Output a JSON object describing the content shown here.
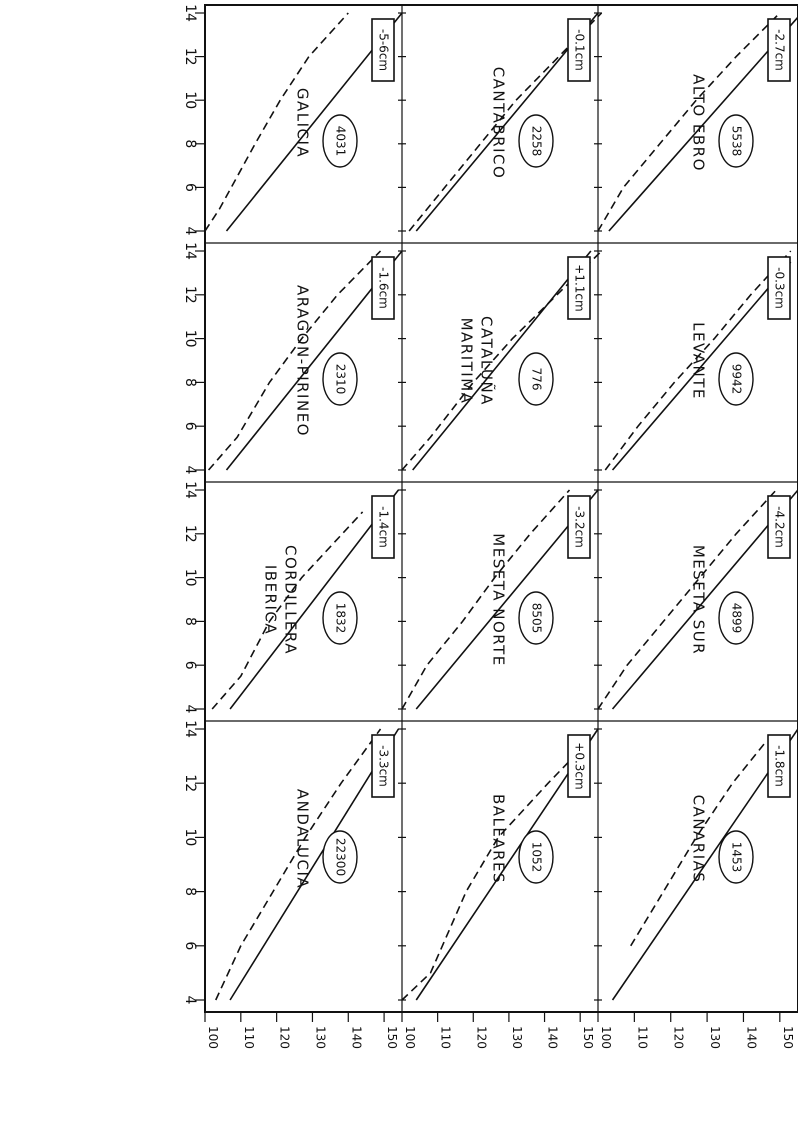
{
  "chart_data": {
    "type": "line",
    "layout": "small-multiples 3 columns x 4 rows, rotated page",
    "x_ticks": [
      "4",
      "6",
      "8",
      "10",
      "12",
      "14"
    ],
    "y_ticks": [
      "100",
      "110",
      "120",
      "130",
      "140",
      "150"
    ],
    "xlim": [
      4,
      14
    ],
    "ylim": [
      100,
      155
    ],
    "panels": [
      {
        "name": "GALICIA",
        "name2": "",
        "diff": "-5-6cm",
        "n": "4031",
        "solid": [
          [
            4,
            106
          ],
          [
            14,
            155
          ]
        ],
        "dashed": [
          [
            4,
            100
          ],
          [
            5,
            104
          ],
          [
            8,
            114
          ],
          [
            10,
            121
          ],
          [
            12,
            129
          ],
          [
            14,
            140
          ]
        ]
      },
      {
        "name": "ARAGON-PIRINEO",
        "name2": "",
        "diff": "-1.6cm",
        "n": "2310",
        "solid": [
          [
            4,
            106
          ],
          [
            14,
            155
          ]
        ],
        "dashed": [
          [
            4,
            101
          ],
          [
            5.5,
            109
          ],
          [
            8,
            118
          ],
          [
            10,
            127
          ],
          [
            12,
            137
          ],
          [
            14,
            149
          ]
        ]
      },
      {
        "name": "CORDILLERA",
        "name2": "IBERICA",
        "diff": "-1.4cm",
        "n": "1832",
        "solid": [
          [
            4,
            107
          ],
          [
            14,
            154
          ]
        ],
        "dashed": [
          [
            4,
            102
          ],
          [
            5.5,
            110
          ],
          [
            8,
            118
          ],
          [
            10,
            127
          ],
          [
            13,
            144
          ]
        ]
      },
      {
        "name": "ANDALUCIA",
        "name2": "",
        "diff": "-3.3cm",
        "n": "22300",
        "solid": [
          [
            4,
            107
          ],
          [
            14,
            154
          ]
        ],
        "dashed": [
          [
            4,
            103
          ],
          [
            6,
            110
          ],
          [
            8,
            119
          ],
          [
            10,
            128
          ],
          [
            12,
            138
          ],
          [
            14,
            149
          ]
        ]
      },
      {
        "name": "CANTABRICO",
        "name2": "",
        "diff": "-0.1cm",
        "n": "2258",
        "solid": [
          [
            4,
            104
          ],
          [
            14,
            155
          ]
        ],
        "dashed": [
          [
            4,
            102
          ],
          [
            6,
            112
          ],
          [
            10,
            132
          ],
          [
            14,
            156
          ]
        ]
      },
      {
        "name": "CATALUÑA",
        "name2": "MARITIMA",
        "diff": "+1.1cm",
        "n": "776",
        "solid": [
          [
            4,
            103
          ],
          [
            14,
            153
          ]
        ],
        "dashed": [
          [
            4,
            100
          ],
          [
            5.5,
            108
          ],
          [
            8,
            120
          ],
          [
            10,
            131
          ],
          [
            14,
            156
          ]
        ]
      },
      {
        "name": "MESETA NORTE",
        "name2": "",
        "diff": "-3.2cm",
        "n": "8505",
        "solid": [
          [
            4,
            104
          ],
          [
            14,
            155
          ]
        ],
        "dashed": [
          [
            4,
            100
          ],
          [
            6,
            107
          ],
          [
            8,
            117
          ],
          [
            10,
            126
          ],
          [
            12,
            136
          ],
          [
            14,
            147
          ]
        ]
      },
      {
        "name": "BALEARES",
        "name2": "",
        "diff": "+0.3cm",
        "n": "1052",
        "solid": [
          [
            4,
            104
          ],
          [
            14,
            155
          ]
        ],
        "dashed": [
          [
            4,
            100
          ],
          [
            5,
            108
          ],
          [
            8,
            118
          ],
          [
            10,
            127
          ],
          [
            12,
            141
          ],
          [
            13.5,
            152
          ]
        ]
      },
      {
        "name": "ALTO EBRO",
        "name2": "",
        "diff": "-2.7cm",
        "n": "5538",
        "solid": [
          [
            4,
            103
          ],
          [
            14,
            156
          ]
        ],
        "dashed": [
          [
            4,
            100
          ],
          [
            6,
            107
          ],
          [
            8,
            117
          ],
          [
            10,
            127
          ],
          [
            12,
            138
          ],
          [
            14,
            150
          ]
        ]
      },
      {
        "name": "LEVANTE",
        "name2": "",
        "diff": "-0.3cm",
        "n": "9942",
        "solid": [
          [
            4,
            104
          ],
          [
            13.5,
            153
          ]
        ],
        "dashed": [
          [
            4,
            102
          ],
          [
            6,
            111
          ],
          [
            8,
            121
          ],
          [
            10,
            132
          ],
          [
            12,
            142
          ],
          [
            14,
            153
          ]
        ]
      },
      {
        "name": "MESETA SUR",
        "name2": "",
        "diff": "-4.2cm",
        "n": "4899",
        "solid": [
          [
            4,
            104
          ],
          [
            14,
            155
          ]
        ],
        "dashed": [
          [
            4,
            100
          ],
          [
            6,
            108
          ],
          [
            8,
            118
          ],
          [
            10,
            128
          ],
          [
            12,
            138
          ],
          [
            14,
            149
          ]
        ]
      },
      {
        "name": "CANARIAS",
        "name2": "",
        "diff": "-1.8cm",
        "n": "1453",
        "solid": [
          [
            4,
            104
          ],
          [
            14,
            155
          ]
        ],
        "dashed": [
          [
            6,
            109
          ],
          [
            8,
            118
          ],
          [
            10,
            127
          ],
          [
            12,
            137
          ],
          [
            13.5,
            146
          ]
        ]
      }
    ]
  }
}
